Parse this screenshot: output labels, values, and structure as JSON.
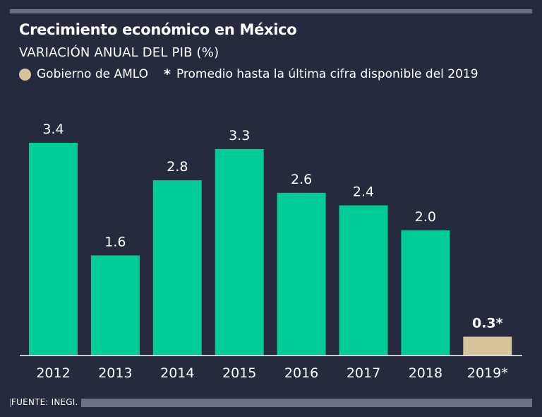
{
  "header": {
    "title": "Crecimiento económico en México",
    "subtitle": "VARIACIÓN ANUAL DEL PIB (%)",
    "legend_label": "Gobierno de AMLO",
    "note_star": "*",
    "note_text": "Promedio hasta la última cifra disponible del 2019"
  },
  "footer": {
    "source": "FUENTE: INEGI."
  },
  "colors": {
    "bar": "#00cc98",
    "highlight": "#d8c49d",
    "background": "#262a3f"
  },
  "chart_data": {
    "type": "bar",
    "title": "Crecimiento económico en México",
    "ylabel": "Variación anual del PIB (%)",
    "xlabel": "",
    "categories": [
      "2012",
      "2013",
      "2014",
      "2015",
      "2016",
      "2017",
      "2018",
      "2019*"
    ],
    "values": [
      3.4,
      1.6,
      2.8,
      3.3,
      2.6,
      2.4,
      2.0,
      0.3
    ],
    "value_labels": [
      "3.4",
      "1.6",
      "2.8",
      "3.3",
      "2.6",
      "2.4",
      "2.0",
      "0.3*"
    ],
    "highlight_index": 7,
    "ylim": [
      0,
      3.4
    ],
    "grid": false
  }
}
